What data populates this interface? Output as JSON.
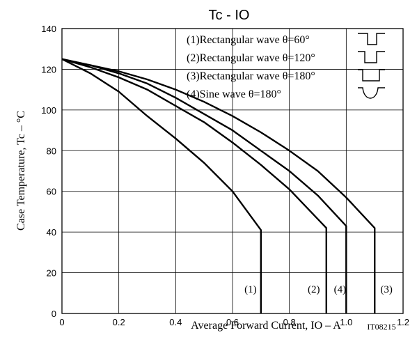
{
  "chart_data": {
    "type": "line",
    "title": "Tc - IO",
    "xlabel": "Average Forward Current, IO  –  A",
    "ylabel": "Case Temperature, Tc  –  °C",
    "xlim": [
      0,
      1.2
    ],
    "ylim": [
      0,
      140
    ],
    "xticks": [
      "0",
      "0.2",
      "0.4",
      "0.6",
      "0.8",
      "1.0",
      "1.2"
    ],
    "yticks": [
      "0",
      "20",
      "40",
      "60",
      "80",
      "100",
      "120",
      "140"
    ],
    "grid": true,
    "legend_position": "top-right",
    "legend": [
      "(1)Rectangular wave θ=60°",
      "(2)Rectangular wave θ=120°",
      "(3)Rectangular wave θ=180°",
      "(4)Sine wave θ=180°"
    ],
    "series": [
      {
        "label": "(1)",
        "x": [
          0,
          0.1,
          0.2,
          0.3,
          0.4,
          0.5,
          0.6,
          0.7,
          0.7
        ],
        "y": [
          125,
          118,
          109,
          97,
          86,
          74,
          60,
          41,
          0
        ]
      },
      {
        "label": "(2)",
        "x": [
          0,
          0.1,
          0.2,
          0.3,
          0.4,
          0.5,
          0.6,
          0.7,
          0.8,
          0.93,
          0.93
        ],
        "y": [
          125,
          121,
          116,
          110,
          102,
          94,
          84,
          73,
          61,
          42,
          0
        ]
      },
      {
        "label": "(4)",
        "x": [
          0,
          0.1,
          0.2,
          0.3,
          0.4,
          0.5,
          0.6,
          0.7,
          0.8,
          0.9,
          1.0,
          1.0
        ],
        "y": [
          125,
          122,
          118,
          113,
          106,
          98,
          90,
          80,
          70,
          58,
          43,
          0
        ]
      },
      {
        "label": "(3)",
        "x": [
          0,
          0.1,
          0.2,
          0.3,
          0.4,
          0.5,
          0.6,
          0.7,
          0.8,
          0.9,
          1.0,
          1.1,
          1.1
        ],
        "y": [
          125,
          122,
          119,
          115,
          110,
          104,
          97,
          89,
          80,
          70,
          57,
          42,
          0
        ]
      }
    ],
    "annotations": [
      "IT08215"
    ]
  }
}
